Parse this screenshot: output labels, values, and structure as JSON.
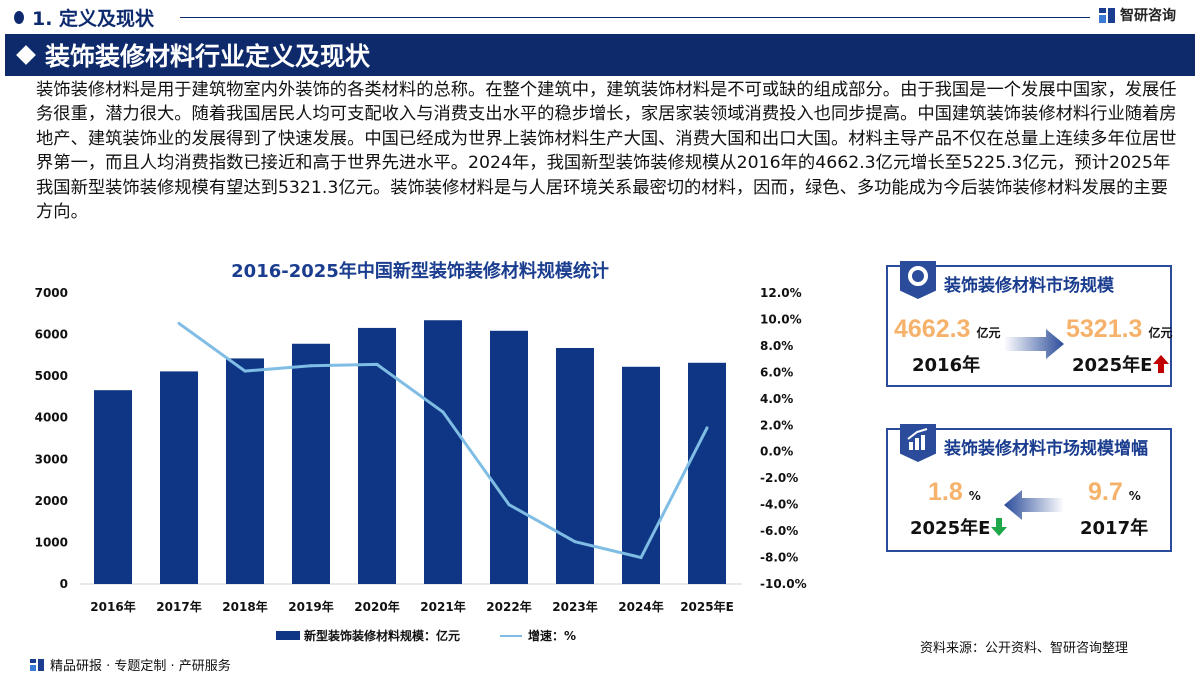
{
  "header": {
    "section": "1. 定义及现状",
    "brand": "智研咨询"
  },
  "banner": {
    "title": "装饰装修材料行业定义及现状"
  },
  "intro": "装饰装修材料是用于建筑物室内外装饰的各类材料的总称。在整个建筑中，建筑装饰材料是不可或缺的组成部分。由于我国是一个发展中国家，发展任务很重，潜力很大。随着我国居民人均可支配收入与消费支出水平的稳步增长，家居家装领域消费投入也同步提高。中国建筑装饰装修材料行业随着房地产、建筑装饰业的发展得到了快速发展。中国已经成为世界上装饰材料生产大国、消费大国和出口大国。材料主导产品不仅在总量上连续多年位居世界第一，而且人均消费指数已接近和高于世界先进水平。2024年，我国新型装饰装修规模从2016年的4662.3亿元增长至5225.3亿元，预计2025年我国新型装饰装修规模有望达到5321.3亿元。装饰装修材料是与人居环境关系最密切的材料，因而，绿色、多功能成为今后装饰装修材料发展的主要方向。",
  "chart_data": {
    "type": "bar+line",
    "title": "2016-2025年中国新型装饰装修材料规模统计",
    "categories": [
      "2016年",
      "2017年",
      "2018年",
      "2019年",
      "2020年",
      "2021年",
      "2022年",
      "2023年",
      "2024年",
      "2025年E"
    ],
    "series": [
      {
        "name": "新型装饰装修材料规模：亿元",
        "type": "bar",
        "axis": "left",
        "color": "#0f3685",
        "values": [
          4662.3,
          5114,
          5426,
          5779,
          6160,
          6345,
          6091,
          5677,
          5225.3,
          5321.3
        ]
      },
      {
        "name": "增速：%",
        "type": "line",
        "axis": "right",
        "color": "#7fbde4",
        "values": [
          null,
          9.7,
          6.1,
          6.5,
          6.6,
          3.0,
          -4.0,
          -6.8,
          -8.0,
          1.8
        ]
      }
    ],
    "left_axis": {
      "min": 0,
      "max": 7000,
      "ticks": [
        "0",
        "1000",
        "2000",
        "3000",
        "4000",
        "5000",
        "6000",
        "7000"
      ]
    },
    "right_axis": {
      "min": -10,
      "max": 12,
      "ticks": [
        "-10.0%",
        "-8.0%",
        "-6.0%",
        "-4.0%",
        "-2.0%",
        "0.0%",
        "2.0%",
        "4.0%",
        "6.0%",
        "8.0%",
        "10.0%",
        "12.0%"
      ]
    },
    "grid": false,
    "legend": "bottom"
  },
  "card1": {
    "title": "装饰装修材料市场规模",
    "from_value": "4662.3",
    "from_unit": "亿元",
    "from_year": "2016年",
    "to_value": "5321.3",
    "to_unit": "亿元",
    "to_year": "2025年E",
    "trend": "up"
  },
  "card2": {
    "title": "装饰装修材料市场规模增幅",
    "left_value": "1.8",
    "left_unit": "%",
    "left_year": "2025年E",
    "right_value": "9.7",
    "right_unit": "%",
    "right_year": "2017年",
    "trend": "down"
  },
  "source": "资料来源：公开资料、智研咨询整理",
  "footer": "精品研报 · 专题定制 · 产研服务"
}
